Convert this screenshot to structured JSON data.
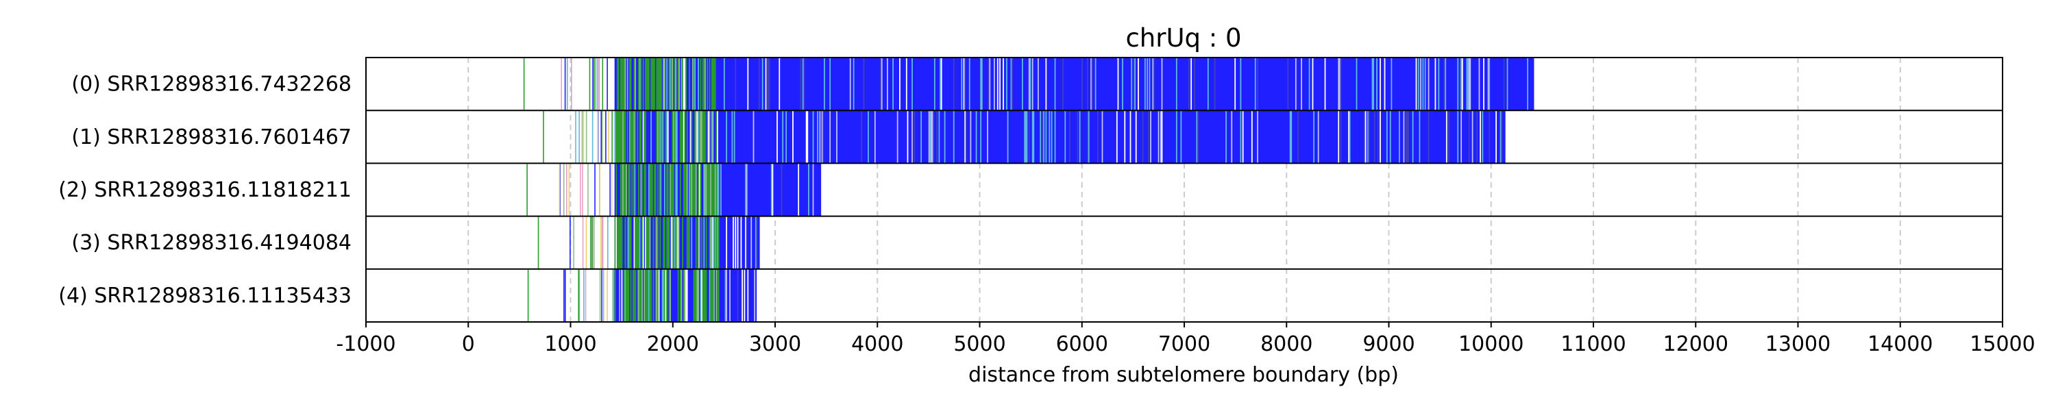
{
  "chart_data": {
    "type": "table",
    "title": "chrUq : 0",
    "xlabel": "distance from subtelomere boundary (bp)",
    "ylabel": "",
    "xlim": [
      -1000,
      15000
    ],
    "xticks": [
      -1000,
      0,
      1000,
      2000,
      3000,
      4000,
      5000,
      6000,
      7000,
      8000,
      9000,
      10000,
      11000,
      12000,
      13000,
      14000,
      15000
    ],
    "xtick_labels": [
      "-1000",
      "0",
      "1000",
      "2000",
      "3000",
      "4000",
      "5000",
      "6000",
      "7000",
      "8000",
      "9000",
      "10000",
      "11000",
      "12000",
      "13000",
      "14000",
      "15000"
    ],
    "grid": {
      "x": true,
      "style": "dashed",
      "color": "#cccccc"
    },
    "colors": {
      "primary": "#1f1fff",
      "secondary": "#2a9d2a",
      "tertiary": "#8fbf8f",
      "accent_pink": "#e8a0c0",
      "accent_yellow": "#e8d070",
      "accent_cyan": "#5fb8e0"
    },
    "reads": [
      {
        "label": "(0) SRR12898316.7432268",
        "first_mark": 540,
        "dense_start": 1430,
        "end": 10420
      },
      {
        "label": "(1) SRR12898316.7601467",
        "first_mark": 730,
        "dense_start": 1430,
        "end": 10140
      },
      {
        "label": "(2) SRR12898316.11818211",
        "first_mark": 570,
        "dense_start": 1430,
        "end": 3450
      },
      {
        "label": "(3) SRR12898316.4194084",
        "first_mark": 680,
        "dense_start": 1430,
        "end": 2850
      },
      {
        "label": "(4) SRR12898316.11135433",
        "first_mark": 580,
        "dense_start": 1430,
        "end": 2820
      }
    ]
  }
}
